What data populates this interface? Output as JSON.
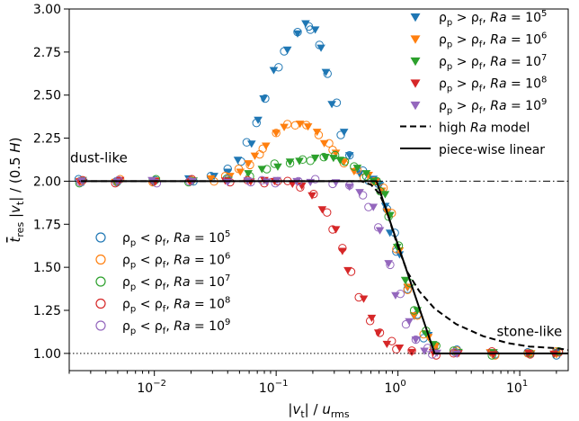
{
  "chart_data": {
    "type": "scatter",
    "xscale": "log",
    "xlim": [
      0.002,
      25
    ],
    "ylim": [
      0.9,
      3.0
    ],
    "xlabel": "|v_t| / u_rms",
    "ylabel": "t_res |v_t| / (0.5 H)",
    "grid": false,
    "x_ticks": [
      {
        "value": 0.01,
        "base": "10",
        "exp": "−2"
      },
      {
        "value": 0.1,
        "base": "10",
        "exp": "−1"
      },
      {
        "value": 1,
        "base": "10",
        "exp": "0"
      },
      {
        "value": 10,
        "base": "10",
        "exp": "1"
      }
    ],
    "y_ticks": [
      "1.00",
      "1.25",
      "1.50",
      "1.75",
      "2.00",
      "2.25",
      "2.50",
      "2.75",
      "3.00"
    ],
    "annotations": [
      {
        "text": "dust-like",
        "x": 0.0035,
        "y": 2.11
      },
      {
        "text": "stone-like",
        "x": 12,
        "y": 1.1
      }
    ],
    "reference_lines": [
      {
        "y": 2.0,
        "style": "dashdot"
      },
      {
        "y": 1.0,
        "style": "dotted"
      }
    ],
    "legend_top": {
      "placement": "top-right",
      "entries": [
        {
          "label": "ρp > ρf, Ra = 10^5",
          "color": "#1f77b4",
          "marker": "triangle-down"
        },
        {
          "label": "ρp > ρf, Ra = 10^6",
          "color": "#ff7f0e",
          "marker": "triangle-down"
        },
        {
          "label": "ρp > ρf, Ra = 10^7",
          "color": "#2ca02c",
          "marker": "triangle-down"
        },
        {
          "label": "ρp > ρf, Ra = 10^8",
          "color": "#d62728",
          "marker": "triangle-down"
        },
        {
          "label": "ρp > ρf, Ra = 10^9",
          "color": "#9467bd",
          "marker": "triangle-down"
        },
        {
          "label": "high Ra model",
          "color": "#000000",
          "marker": "dashed-line"
        },
        {
          "label": "piece-wise linear",
          "color": "#000000",
          "marker": "solid-line"
        }
      ]
    },
    "legend_bottom": {
      "placement": "lower-left",
      "entries": [
        {
          "label": "ρp < ρf, Ra = 10^5",
          "color": "#1f77b4",
          "marker": "circle"
        },
        {
          "label": "ρp < ρf, Ra = 10^6",
          "color": "#ff7f0e",
          "marker": "circle"
        },
        {
          "label": "ρp < ρf, Ra = 10^7",
          "color": "#2ca02c",
          "marker": "circle"
        },
        {
          "label": "ρp < ρf, Ra = 10^8",
          "color": "#d62728",
          "marker": "circle"
        },
        {
          "label": "ρp < ρf, Ra = 10^9",
          "color": "#9467bd",
          "marker": "circle"
        }
      ]
    },
    "series": [
      {
        "Ra": "10^5",
        "color": "#1f77b4",
        "points": [
          [
            0.0025,
            2.0
          ],
          [
            0.005,
            2.0
          ],
          [
            0.01,
            2.0
          ],
          [
            0.02,
            2.01
          ],
          [
            0.03,
            2.03
          ],
          [
            0.04,
            2.06
          ],
          [
            0.05,
            2.12
          ],
          [
            0.06,
            2.22
          ],
          [
            0.07,
            2.35
          ],
          [
            0.08,
            2.48
          ],
          [
            0.1,
            2.65
          ],
          [
            0.12,
            2.76
          ],
          [
            0.15,
            2.86
          ],
          [
            0.18,
            2.91
          ],
          [
            0.2,
            2.88
          ],
          [
            0.23,
            2.78
          ],
          [
            0.26,
            2.63
          ],
          [
            0.3,
            2.45
          ],
          [
            0.35,
            2.28
          ],
          [
            0.4,
            2.15
          ],
          [
            0.5,
            2.05
          ],
          [
            0.6,
            2.01
          ],
          [
            0.7,
            1.98
          ],
          [
            0.8,
            1.85
          ],
          [
            0.9,
            1.7
          ],
          [
            1.0,
            1.58
          ],
          [
            1.2,
            1.38
          ],
          [
            1.4,
            1.22
          ],
          [
            1.7,
            1.1
          ],
          [
            2.0,
            1.04
          ],
          [
            3.0,
            1.01
          ],
          [
            6.0,
            1.0
          ],
          [
            12.0,
            1.0
          ],
          [
            20.0,
            1.0
          ]
        ]
      },
      {
        "Ra": "10^6",
        "color": "#ff7f0e",
        "points": [
          [
            0.0025,
            2.0
          ],
          [
            0.005,
            2.0
          ],
          [
            0.01,
            2.0
          ],
          [
            0.02,
            2.0
          ],
          [
            0.03,
            2.01
          ],
          [
            0.04,
            2.03
          ],
          [
            0.05,
            2.06
          ],
          [
            0.06,
            2.1
          ],
          [
            0.07,
            2.15
          ],
          [
            0.08,
            2.2
          ],
          [
            0.1,
            2.28
          ],
          [
            0.12,
            2.32
          ],
          [
            0.15,
            2.33
          ],
          [
            0.18,
            2.32
          ],
          [
            0.22,
            2.28
          ],
          [
            0.26,
            2.22
          ],
          [
            0.3,
            2.17
          ],
          [
            0.36,
            2.11
          ],
          [
            0.45,
            2.06
          ],
          [
            0.55,
            2.03
          ],
          [
            0.65,
            2.0
          ],
          [
            0.75,
            1.95
          ],
          [
            0.85,
            1.82
          ],
          [
            1.0,
            1.6
          ],
          [
            1.2,
            1.38
          ],
          [
            1.4,
            1.22
          ],
          [
            1.7,
            1.1
          ],
          [
            2.0,
            1.04
          ],
          [
            3.0,
            1.01
          ],
          [
            6.0,
            1.0
          ],
          [
            12.0,
            1.0
          ],
          [
            20.0,
            1.0
          ]
        ]
      },
      {
        "Ra": "10^7",
        "color": "#2ca02c",
        "points": [
          [
            0.0025,
            2.0
          ],
          [
            0.005,
            2.0
          ],
          [
            0.01,
            2.0
          ],
          [
            0.02,
            2.0
          ],
          [
            0.04,
            2.01
          ],
          [
            0.06,
            2.04
          ],
          [
            0.08,
            2.07
          ],
          [
            0.1,
            2.09
          ],
          [
            0.13,
            2.11
          ],
          [
            0.16,
            2.12
          ],
          [
            0.2,
            2.13
          ],
          [
            0.25,
            2.14
          ],
          [
            0.3,
            2.14
          ],
          [
            0.35,
            2.12
          ],
          [
            0.45,
            2.08
          ],
          [
            0.55,
            2.04
          ],
          [
            0.65,
            2.0
          ],
          [
            0.75,
            1.93
          ],
          [
            0.85,
            1.8
          ],
          [
            1.0,
            1.62
          ],
          [
            1.2,
            1.42
          ],
          [
            1.4,
            1.25
          ],
          [
            1.7,
            1.12
          ],
          [
            2.0,
            1.05
          ],
          [
            3.0,
            1.01
          ],
          [
            6.0,
            1.0
          ],
          [
            12.0,
            1.0
          ],
          [
            20.0,
            1.0
          ]
        ]
      },
      {
        "Ra": "10^8",
        "color": "#d62728",
        "points": [
          [
            0.0025,
            2.0
          ],
          [
            0.005,
            2.0
          ],
          [
            0.01,
            2.0
          ],
          [
            0.02,
            2.0
          ],
          [
            0.04,
            2.0
          ],
          [
            0.06,
            2.0
          ],
          [
            0.08,
            2.0
          ],
          [
            0.1,
            2.0
          ],
          [
            0.13,
            1.99
          ],
          [
            0.16,
            1.97
          ],
          [
            0.2,
            1.92
          ],
          [
            0.25,
            1.83
          ],
          [
            0.3,
            1.72
          ],
          [
            0.35,
            1.6
          ],
          [
            0.4,
            1.48
          ],
          [
            0.5,
            1.32
          ],
          [
            0.6,
            1.2
          ],
          [
            0.7,
            1.12
          ],
          [
            0.85,
            1.06
          ],
          [
            1.0,
            1.03
          ],
          [
            1.3,
            1.01
          ],
          [
            2.0,
            1.0
          ],
          [
            3.0,
            1.0
          ],
          [
            6.0,
            1.0
          ],
          [
            12.0,
            1.0
          ],
          [
            20.0,
            1.0
          ]
        ]
      },
      {
        "Ra": "10^9",
        "color": "#9467bd",
        "points": [
          [
            0.0025,
            2.0
          ],
          [
            0.005,
            2.0
          ],
          [
            0.01,
            2.0
          ],
          [
            0.02,
            2.0
          ],
          [
            0.04,
            2.0
          ],
          [
            0.06,
            2.0
          ],
          [
            0.08,
            2.0
          ],
          [
            0.1,
            2.0
          ],
          [
            0.15,
            2.0
          ],
          [
            0.2,
            2.0
          ],
          [
            0.3,
            1.99
          ],
          [
            0.4,
            1.97
          ],
          [
            0.5,
            1.93
          ],
          [
            0.6,
            1.85
          ],
          [
            0.7,
            1.72
          ],
          [
            0.85,
            1.52
          ],
          [
            1.0,
            1.34
          ],
          [
            1.2,
            1.18
          ],
          [
            1.4,
            1.08
          ],
          [
            1.7,
            1.02
          ],
          [
            2.0,
            1.0
          ],
          [
            3.0,
            1.0
          ]
        ]
      }
    ],
    "model_lines": [
      {
        "name": "high Ra model",
        "style": "dashed",
        "points": [
          [
            0.0025,
            2.0
          ],
          [
            0.1,
            2.0
          ],
          [
            0.5,
            2.0
          ],
          [
            0.6,
            1.98
          ],
          [
            0.7,
            1.93
          ],
          [
            0.8,
            1.84
          ],
          [
            0.9,
            1.72
          ],
          [
            1.0,
            1.62
          ],
          [
            1.2,
            1.47
          ],
          [
            1.5,
            1.36
          ],
          [
            2.0,
            1.26
          ],
          [
            3.0,
            1.17
          ],
          [
            5.0,
            1.1
          ],
          [
            8.0,
            1.06
          ],
          [
            12.0,
            1.04
          ],
          [
            20.0,
            1.03
          ],
          [
            25.0,
            1.02
          ]
        ]
      },
      {
        "name": "piece-wise linear",
        "style": "solid",
        "points": [
          [
            0.0025,
            2.0
          ],
          [
            0.667,
            2.0
          ],
          [
            2.0,
            1.0
          ],
          [
            25.0,
            1.0
          ]
        ]
      }
    ]
  }
}
